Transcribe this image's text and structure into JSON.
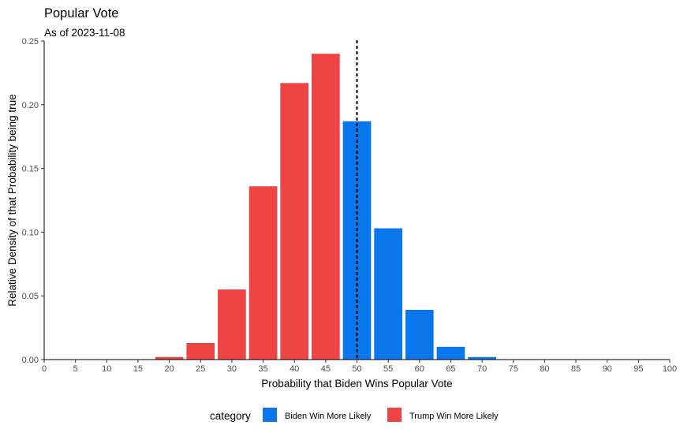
{
  "chart_data": {
    "type": "bar",
    "title": "Popular Vote",
    "subtitle": "As of 2023-11-08",
    "xlabel": "Probability that Biden Wins Popular Vote",
    "ylabel": "Relative Density of that Probability being true",
    "xlim": [
      0,
      100
    ],
    "ylim": [
      0,
      0.25
    ],
    "x_ticks": [
      "0",
      "5",
      "10",
      "15",
      "20",
      "25",
      "30",
      "35",
      "40",
      "45",
      "50",
      "55",
      "60",
      "65",
      "70",
      "75",
      "80",
      "85",
      "90",
      "95",
      "100"
    ],
    "y_ticks": [
      "0.00",
      "0.05",
      "0.10",
      "0.15",
      "0.20",
      "0.25"
    ],
    "grid": false,
    "reference_line": {
      "x": 50,
      "style": "dotted"
    },
    "legend": {
      "title": "category",
      "position": "bottom",
      "entries": [
        {
          "label": "Biden Win More Likely",
          "color": "#0a76ec"
        },
        {
          "label": "Trump Win More Likely",
          "color": "#ef4444"
        }
      ]
    },
    "bin_width": 5,
    "bars": [
      {
        "x": 20,
        "value": 0.002,
        "category": "Trump Win More Likely"
      },
      {
        "x": 25,
        "value": 0.013,
        "category": "Trump Win More Likely"
      },
      {
        "x": 30,
        "value": 0.055,
        "category": "Trump Win More Likely"
      },
      {
        "x": 35,
        "value": 0.136,
        "category": "Trump Win More Likely"
      },
      {
        "x": 40,
        "value": 0.217,
        "category": "Trump Win More Likely"
      },
      {
        "x": 45,
        "value": 0.24,
        "category": "Trump Win More Likely"
      },
      {
        "x": 50,
        "value": 0.187,
        "category": "Biden Win More Likely"
      },
      {
        "x": 55,
        "value": 0.103,
        "category": "Biden Win More Likely"
      },
      {
        "x": 60,
        "value": 0.039,
        "category": "Biden Win More Likely"
      },
      {
        "x": 65,
        "value": 0.01,
        "category": "Biden Win More Likely"
      },
      {
        "x": 70,
        "value": 0.002,
        "category": "Biden Win More Likely"
      }
    ]
  }
}
